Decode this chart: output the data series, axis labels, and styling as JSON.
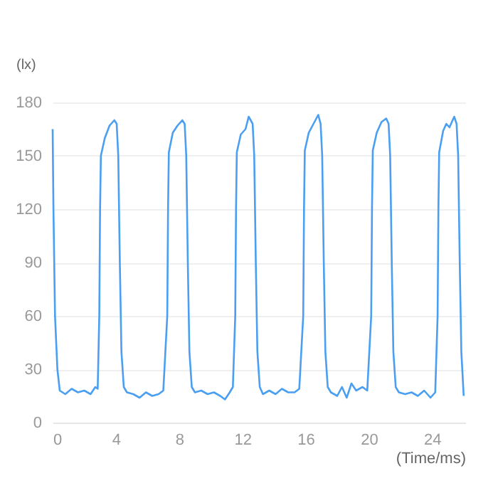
{
  "chart_data": {
    "type": "line",
    "ylabel": "(lx)",
    "xlabel": "(Time/ms)",
    "xlim": [
      0,
      26.1
    ],
    "xticks": [
      0,
      4,
      8,
      12,
      16,
      20,
      24
    ],
    "ylim": [
      0,
      180
    ],
    "yticks": [
      0,
      30,
      60,
      90,
      120,
      150,
      180
    ],
    "grid": "y",
    "marker": "none",
    "line_style": "solid",
    "series": [
      {
        "color": "#4a9ff0",
        "x": [
          0,
          0.05,
          0.15,
          0.3,
          0.45,
          0.8,
          1.2,
          1.6,
          2.0,
          2.4,
          2.7,
          2.85,
          2.95,
          3.0,
          3.05,
          3.3,
          3.6,
          3.9,
          4.05,
          4.15,
          4.25,
          4.35,
          4.5,
          4.7,
          5.1,
          5.5,
          5.9,
          6.3,
          6.7,
          7.0,
          7.25,
          7.3,
          7.35,
          7.6,
          7.9,
          8.2,
          8.35,
          8.45,
          8.55,
          8.65,
          8.8,
          9.0,
          9.4,
          9.8,
          10.2,
          10.6,
          10.9,
          11.2,
          11.4,
          11.55,
          11.6,
          11.65,
          11.9,
          12.2,
          12.4,
          12.65,
          12.75,
          12.85,
          12.95,
          13.1,
          13.3,
          13.7,
          14.1,
          14.5,
          14.9,
          15.3,
          15.6,
          15.85,
          15.9,
          15.95,
          16.2,
          16.5,
          16.8,
          16.95,
          17.05,
          17.15,
          17.25,
          17.4,
          17.6,
          18.0,
          18.3,
          18.6,
          18.9,
          19.2,
          19.6,
          19.9,
          20.15,
          20.2,
          20.25,
          20.5,
          20.8,
          21.1,
          21.25,
          21.35,
          21.45,
          21.55,
          21.7,
          21.9,
          22.3,
          22.7,
          23.1,
          23.5,
          23.9,
          24.2,
          24.35,
          24.4,
          24.45,
          24.7,
          24.9,
          25.1,
          25.4,
          25.55,
          25.65,
          25.75,
          25.85,
          26.0
        ],
        "values": [
          165,
          120,
          60,
          30,
          18,
          16,
          19,
          17,
          18,
          16,
          20,
          19,
          60,
          120,
          150,
          160,
          167,
          170,
          168,
          150,
          90,
          40,
          20,
          17,
          16,
          14,
          17,
          15,
          16,
          18,
          60,
          120,
          152,
          163,
          167,
          170,
          168,
          150,
          90,
          40,
          20,
          17,
          18,
          16,
          17,
          15,
          13,
          17,
          20,
          60,
          120,
          152,
          162,
          165,
          172,
          168,
          150,
          90,
          40,
          20,
          16,
          18,
          16,
          19,
          17,
          17,
          19,
          60,
          120,
          153,
          163,
          168,
          173,
          168,
          150,
          90,
          40,
          20,
          17,
          15,
          20,
          14,
          22,
          18,
          20,
          18,
          60,
          120,
          153,
          163,
          169,
          171,
          168,
          150,
          90,
          40,
          20,
          17,
          16,
          17,
          15,
          18,
          14,
          17,
          60,
          120,
          152,
          164,
          168,
          166,
          172,
          168,
          150,
          90,
          40,
          15
        ]
      }
    ]
  }
}
